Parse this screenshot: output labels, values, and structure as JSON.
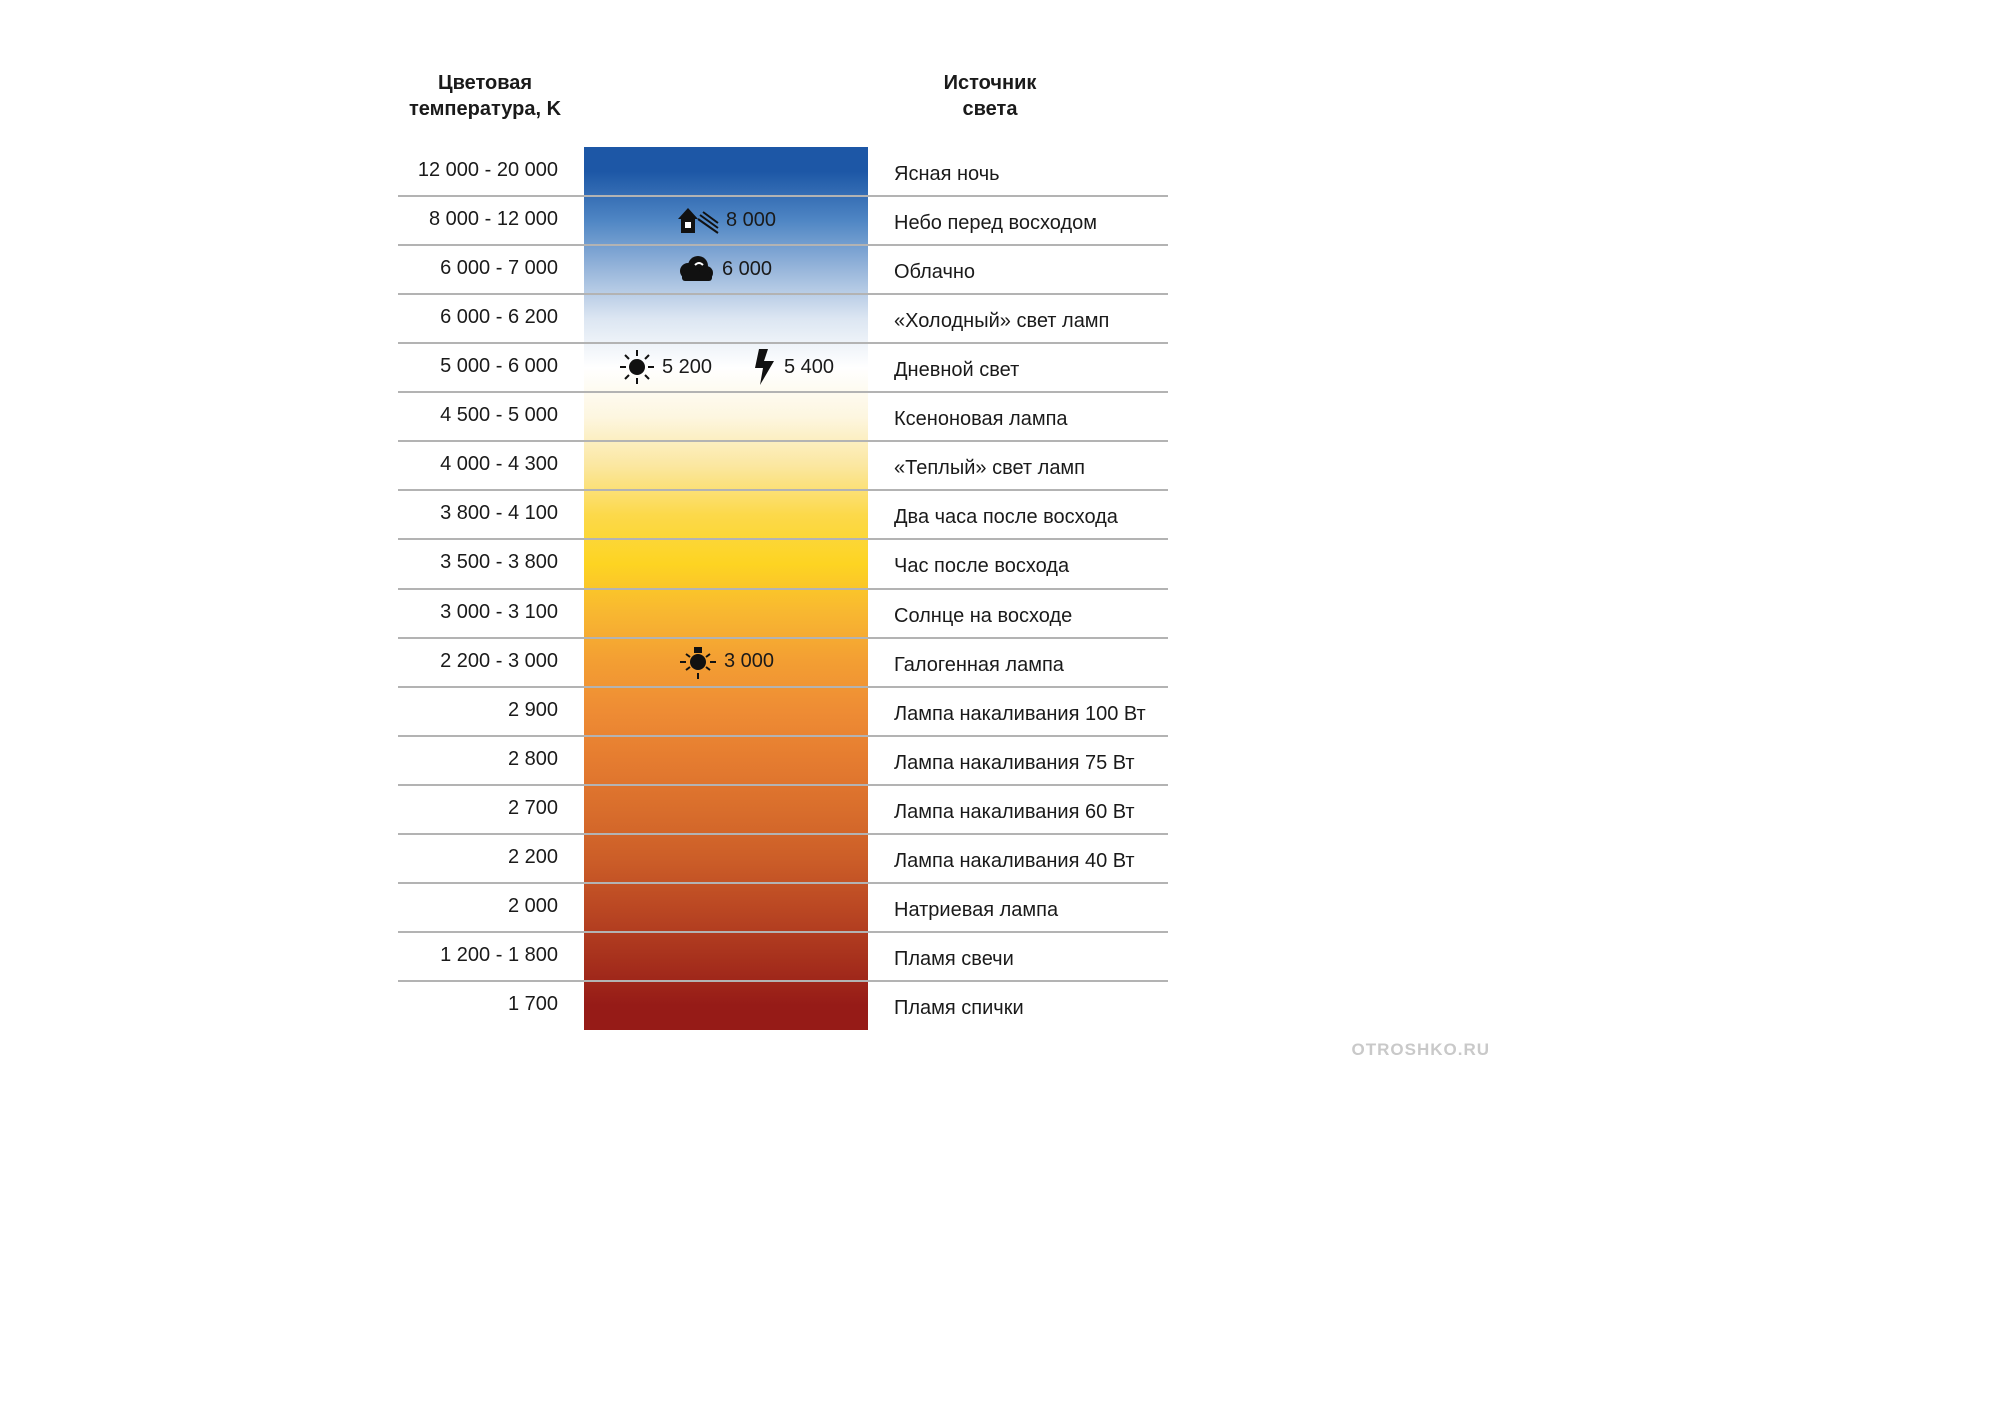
{
  "headers": {
    "left": "Цветовая\nтемпература, K",
    "right": "Источник\nсвета"
  },
  "chart_data": {
    "type": "table",
    "rows": [
      {
        "range": "12 000 - 20 000",
        "source": "Ясная ночь"
      },
      {
        "range": "8 000 - 12 000",
        "source": "Небо перед восходом"
      },
      {
        "range": "6 000 - 7 000",
        "source": "Облачно"
      },
      {
        "range": "6 000 - 6 200",
        "source": "«Холодный» свет ламп"
      },
      {
        "range": "5 000 - 6 000",
        "source": "Дневной свет"
      },
      {
        "range": "4 500 - 5 000",
        "source": "Ксеноновая лампа"
      },
      {
        "range": "4 000 - 4 300",
        "source": "«Теплый» свет ламп"
      },
      {
        "range": "3 800 - 4 100",
        "source": "Два часа после восхода"
      },
      {
        "range": "3 500 - 3 800",
        "source": "Час после восхода"
      },
      {
        "range": "3 000 - 3 100",
        "source": "Солнце на восходе"
      },
      {
        "range": "2 200 - 3 000",
        "source": "Галогенная лампа"
      },
      {
        "range": "2 900",
        "source": "Лампа накаливания 100 Вт"
      },
      {
        "range": "2 800",
        "source": "Лампа накаливания 75 Вт"
      },
      {
        "range": "2 700",
        "source": "Лампа накаливания 60 Вт"
      },
      {
        "range": "2 200",
        "source": "Лампа накаливания 40 Вт"
      },
      {
        "range": "2 000",
        "source": "Натриевая лампа"
      },
      {
        "range": "1 200 - 1 800",
        "source": "Пламя свечи"
      },
      {
        "range": "1 700",
        "source": "Пламя спички"
      }
    ],
    "markers": [
      {
        "icon": "house-shade-icon",
        "label": "8 000",
        "row": 1
      },
      {
        "icon": "cloud-icon",
        "label": "6 000",
        "row": 2
      },
      {
        "icon": "sun-icon",
        "label": "5 200",
        "row": 4
      },
      {
        "icon": "flash-icon",
        "label": "5 400",
        "row": 4
      },
      {
        "icon": "lamp-icon",
        "label": "3 000",
        "row": 10
      }
    ],
    "gradient_stops": [
      {
        "row": 0,
        "color": "#1d57a6"
      },
      {
        "row": 1,
        "color": "#4f86c4"
      },
      {
        "row": 2,
        "color": "#98b6db"
      },
      {
        "row": 3,
        "color": "#dce6f2"
      },
      {
        "row": 4,
        "color": "#ffffff"
      },
      {
        "row": 5,
        "color": "#fdf6e0"
      },
      {
        "row": 6,
        "color": "#fbe7a0"
      },
      {
        "row": 7,
        "color": "#fcd94a"
      },
      {
        "row": 8,
        "color": "#fdd422"
      },
      {
        "row": 9,
        "color": "#f8b731"
      },
      {
        "row": 10,
        "color": "#f39e33"
      },
      {
        "row": 11,
        "color": "#ee8c34"
      },
      {
        "row": 12,
        "color": "#e57c30"
      },
      {
        "row": 13,
        "color": "#d96e2c"
      },
      {
        "row": 14,
        "color": "#cc5e28"
      },
      {
        "row": 15,
        "color": "#bb4823"
      },
      {
        "row": 16,
        "color": "#a8321d"
      },
      {
        "row": 17,
        "color": "#961b17"
      }
    ]
  },
  "watermark": "OTROSHKO.RU"
}
